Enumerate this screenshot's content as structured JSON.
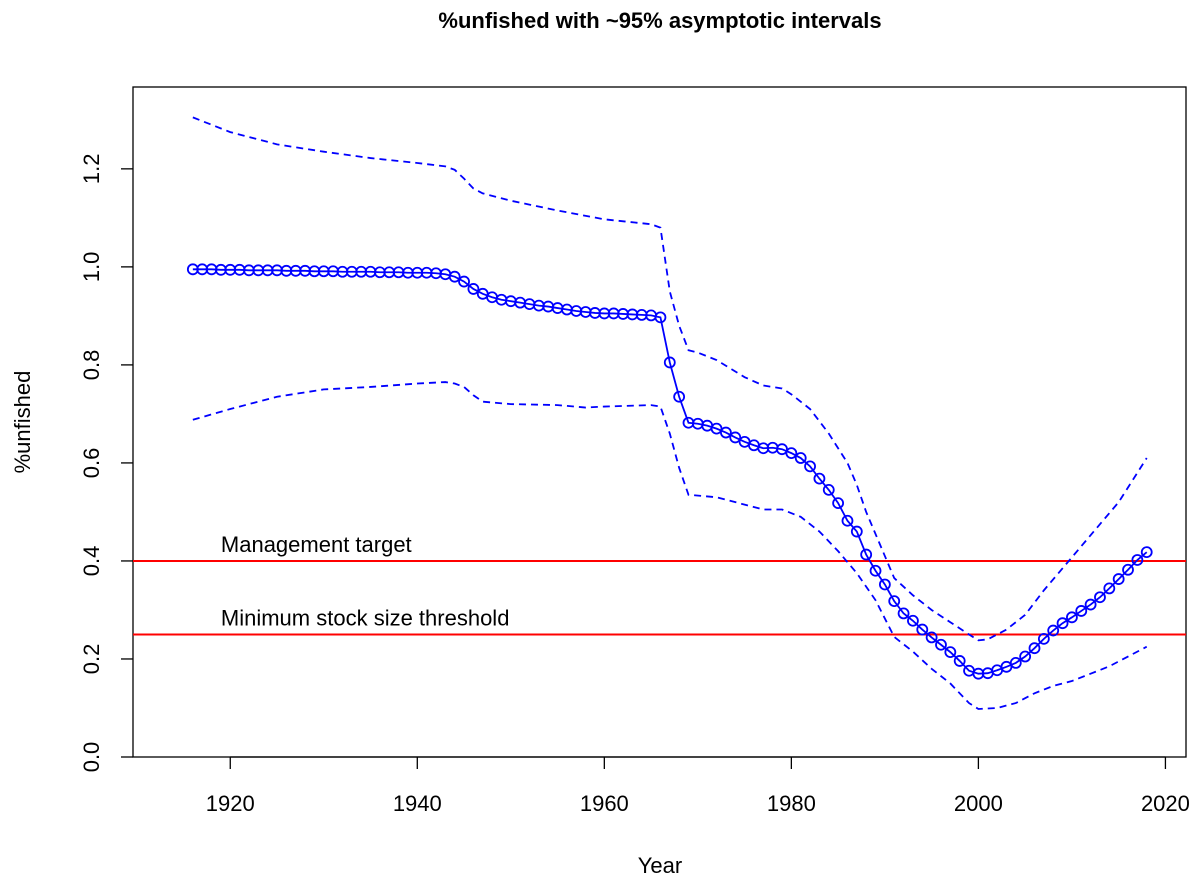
{
  "chart_data": {
    "type": "line",
    "title": "%unfished with ~95% asymptotic intervals",
    "x_label": "Year",
    "y_label": "%unfished",
    "xlim": [
      1909.6,
      2022.2
    ],
    "ylim": [
      0,
      1.367
    ],
    "xticks": [
      1920,
      1940,
      1960,
      1980,
      2000,
      2020
    ],
    "yticks": [
      {
        "value": 0,
        "label": "0.0"
      },
      0.2,
      0.4,
      0.6,
      0.8,
      {
        "value": 1,
        "label": "1.0"
      },
      1.2
    ],
    "reference_lines": [
      {
        "value": 0.4,
        "label": "Management target",
        "color": "#ff0000"
      },
      {
        "value": 0.25,
        "label": "Minimum stock size threshold",
        "color": "#ff0000"
      }
    ],
    "annotation_x": 1919,
    "series": [
      {
        "color": "#0000ff",
        "linestyle": "solid",
        "markers": true,
        "x": [
          1916,
          1917,
          1918,
          1919,
          1920,
          1921,
          1922,
          1923,
          1924,
          1925,
          1926,
          1927,
          1928,
          1929,
          1930,
          1931,
          1932,
          1933,
          1934,
          1935,
          1936,
          1937,
          1938,
          1939,
          1940,
          1941,
          1942,
          1943,
          1944,
          1945,
          1946,
          1947,
          1948,
          1949,
          1950,
          1951,
          1952,
          1953,
          1954,
          1955,
          1956,
          1957,
          1958,
          1959,
          1960,
          1961,
          1962,
          1963,
          1964,
          1965,
          1966,
          1967,
          1968,
          1969,
          1970,
          1971,
          1972,
          1973,
          1974,
          1975,
          1976,
          1977,
          1978,
          1979,
          1980,
          1981,
          1982,
          1983,
          1984,
          1985,
          1986,
          1987,
          1988,
          1989,
          1990,
          1991,
          1992,
          1993,
          1994,
          1995,
          1996,
          1997,
          1998,
          1999,
          2000,
          2001,
          2002,
          2003,
          2004,
          2005,
          2006,
          2007,
          2008,
          2009,
          2010,
          2011,
          2012,
          2013,
          2014,
          2015,
          2016,
          2017,
          2018
        ],
        "values": [
          0.995,
          0.995,
          0.995,
          0.994,
          0.994,
          0.994,
          0.993,
          0.993,
          0.993,
          0.993,
          0.992,
          0.992,
          0.992,
          0.991,
          0.991,
          0.991,
          0.99,
          0.99,
          0.99,
          0.99,
          0.989,
          0.989,
          0.989,
          0.988,
          0.988,
          0.988,
          0.987,
          0.985,
          0.98,
          0.97,
          0.955,
          0.945,
          0.938,
          0.933,
          0.93,
          0.927,
          0.924,
          0.921,
          0.919,
          0.916,
          0.913,
          0.91,
          0.908,
          0.906,
          0.905,
          0.905,
          0.904,
          0.903,
          0.902,
          0.901,
          0.897,
          0.805,
          0.735,
          0.682,
          0.68,
          0.676,
          0.67,
          0.662,
          0.652,
          0.643,
          0.636,
          0.63,
          0.631,
          0.628,
          0.62,
          0.61,
          0.593,
          0.568,
          0.545,
          0.518,
          0.482,
          0.46,
          0.413,
          0.38,
          0.352,
          0.318,
          0.293,
          0.278,
          0.26,
          0.244,
          0.229,
          0.214,
          0.196,
          0.176,
          0.17,
          0.171,
          0.177,
          0.184,
          0.192,
          0.205,
          0.222,
          0.241,
          0.258,
          0.273,
          0.285,
          0.298,
          0.311,
          0.326,
          0.344,
          0.363,
          0.382,
          0.402,
          0.418
        ]
      },
      {
        "color": "#0000ff",
        "linestyle": "dashed",
        "markers": false,
        "x": [
          1916,
          1920,
          1925,
          1930,
          1935,
          1940,
          1943,
          1944,
          1945,
          1946,
          1947,
          1950,
          1955,
          1960,
          1965,
          1966,
          1967,
          1968,
          1969,
          1970,
          1972,
          1975,
          1977,
          1979,
          1980,
          1982,
          1984,
          1986,
          1987,
          1988,
          1990,
          1991,
          1993,
          1995,
          1997,
          1999,
          2000,
          2001,
          2003,
          2005,
          2007,
          2009,
          2011,
          2013,
          2015,
          2017,
          2018
        ],
        "values": [
          1.305,
          1.275,
          1.25,
          1.235,
          1.222,
          1.212,
          1.205,
          1.198,
          1.18,
          1.16,
          1.15,
          1.135,
          1.115,
          1.097,
          1.087,
          1.08,
          0.95,
          0.88,
          0.83,
          0.825,
          0.81,
          0.775,
          0.758,
          0.752,
          0.74,
          0.71,
          0.66,
          0.6,
          0.555,
          0.5,
          0.41,
          0.365,
          0.33,
          0.3,
          0.275,
          0.25,
          0.238,
          0.24,
          0.26,
          0.29,
          0.34,
          0.385,
          0.43,
          0.475,
          0.52,
          0.58,
          0.61
        ]
      },
      {
        "color": "#0000ff",
        "linestyle": "dashed",
        "markers": false,
        "x": [
          1916,
          1920,
          1925,
          1930,
          1935,
          1940,
          1943,
          1944,
          1945,
          1946,
          1947,
          1950,
          1955,
          1958,
          1960,
          1965,
          1966,
          1967,
          1968,
          1969,
          1972,
          1975,
          1977,
          1979,
          1981,
          1983,
          1985,
          1987,
          1989,
          1991,
          1993,
          1995,
          1997,
          1999,
          2000,
          2002,
          2004,
          2006,
          2008,
          2010,
          2012,
          2014,
          2016,
          2018
        ],
        "values": [
          0.688,
          0.71,
          0.735,
          0.75,
          0.755,
          0.762,
          0.765,
          0.762,
          0.755,
          0.738,
          0.725,
          0.72,
          0.718,
          0.713,
          0.715,
          0.718,
          0.715,
          0.66,
          0.59,
          0.535,
          0.53,
          0.515,
          0.505,
          0.505,
          0.49,
          0.46,
          0.42,
          0.375,
          0.32,
          0.245,
          0.215,
          0.18,
          0.15,
          0.11,
          0.098,
          0.1,
          0.11,
          0.13,
          0.145,
          0.155,
          0.17,
          0.185,
          0.205,
          0.225
        ]
      }
    ]
  }
}
